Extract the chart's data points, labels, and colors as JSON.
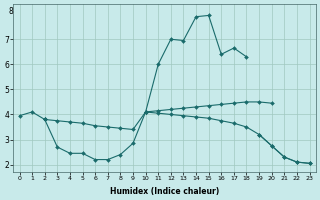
{
  "xlabel": "Humidex (Indice chaleur)",
  "x_ticks": [
    0,
    1,
    2,
    3,
    4,
    5,
    6,
    7,
    8,
    9,
    10,
    11,
    12,
    13,
    14,
    15,
    16,
    17,
    18,
    19,
    20,
    21,
    22,
    23
  ],
  "xlim": [
    -0.5,
    23.5
  ],
  "ylim": [
    1.7,
    8.4
  ],
  "y_ticks": [
    2,
    3,
    4,
    5,
    6,
    7
  ],
  "y_top_label": "8",
  "background_color": "#c8eaea",
  "grid_color": "#a0c8c0",
  "line_color": "#1a6b6b",
  "series_upper": {
    "x": [
      10,
      11,
      12,
      13,
      14,
      15,
      16,
      17,
      18
    ],
    "y": [
      4.1,
      6.0,
      7.0,
      6.95,
      7.9,
      7.95,
      6.4,
      6.65,
      6.3
    ]
  },
  "series_top_flat": {
    "x": [
      0,
      1,
      2,
      10,
      11,
      12,
      13,
      14,
      15,
      16,
      17,
      18,
      19,
      20
    ],
    "y": [
      3.95,
      4.1,
      3.8,
      4.1,
      4.15,
      4.2,
      4.25,
      4.3,
      4.35,
      4.4,
      4.45,
      4.5,
      4.5,
      4.45
    ]
  },
  "series_lower_bump": {
    "x": [
      2,
      3,
      4,
      5,
      6,
      7,
      8,
      9,
      10
    ],
    "y": [
      3.8,
      2.7,
      2.45,
      2.45,
      2.2,
      2.2,
      2.4,
      2.85,
      4.1
    ]
  },
  "series_tail": {
    "x": [
      19,
      20,
      21,
      22,
      23
    ],
    "y": [
      3.2,
      2.75,
      2.3,
      2.1,
      2.05
    ]
  },
  "series_bottom_flat": {
    "x": [
      2,
      3,
      4,
      5,
      6,
      7,
      8,
      9,
      10,
      11,
      12,
      13,
      14,
      15,
      16,
      17,
      18,
      19,
      20,
      21,
      22,
      23
    ],
    "y": [
      3.8,
      3.75,
      3.7,
      3.65,
      3.55,
      3.5,
      3.45,
      3.4,
      4.1,
      4.05,
      4.0,
      3.95,
      3.9,
      3.85,
      3.75,
      3.65,
      3.5,
      3.2,
      2.75,
      2.3,
      2.1,
      2.05
    ]
  }
}
